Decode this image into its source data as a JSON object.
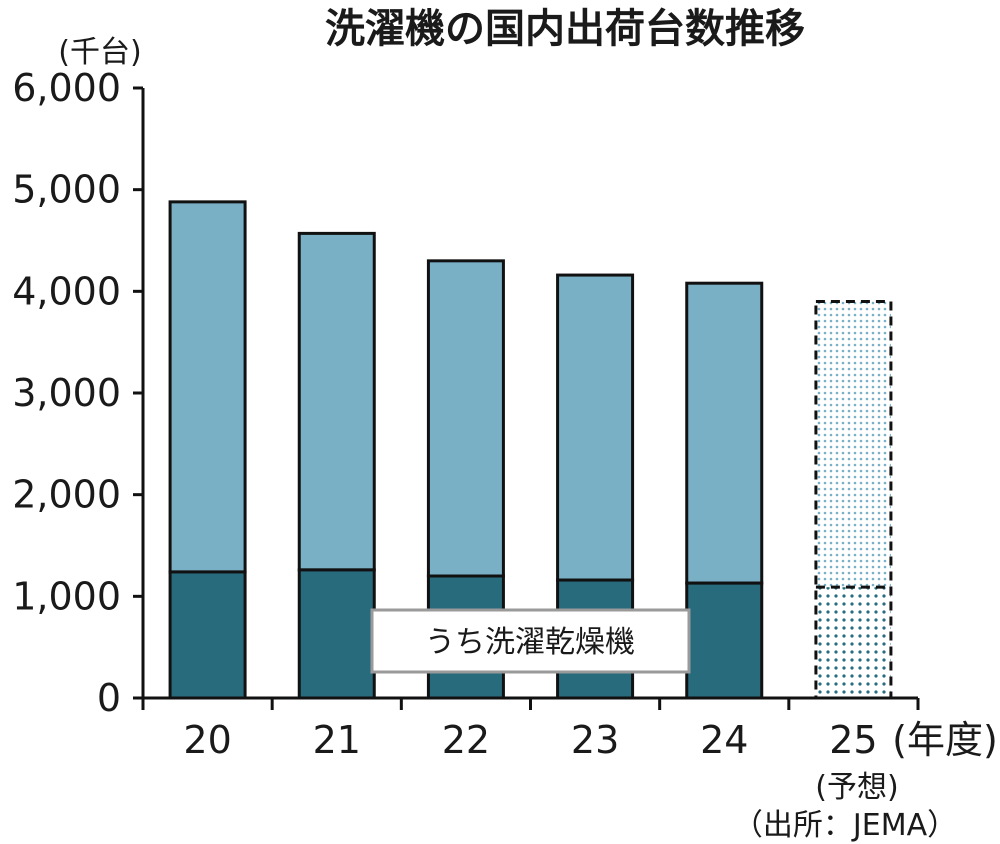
{
  "chart_data": {
    "type": "bar",
    "title": "洗濯機の国内出荷台数推移",
    "y_unit": "(千台)",
    "x_unit": "(年度)",
    "categories": [
      "20",
      "21",
      "22",
      "23",
      "24",
      "25"
    ],
    "forecast_note": "(予想)",
    "forecast_category": "25",
    "source": "（出所：JEMA）",
    "ylim": [
      0,
      6000
    ],
    "yticks": [
      0,
      1000,
      2000,
      3000,
      4000,
      5000,
      6000
    ],
    "ytick_labels": [
      "0",
      "1,000",
      "2,000",
      "3,000",
      "4,000",
      "5,000",
      "6,000"
    ],
    "total": [
      4880,
      4570,
      4300,
      4160,
      4080,
      3900
    ],
    "series": [
      {
        "name": "うち洗濯乾燥機",
        "values": [
          1240,
          1260,
          1200,
          1160,
          1130,
          1090
        ]
      }
    ],
    "legend_label": "うち洗濯乾燥機",
    "colors": {
      "total": "#7ab0c6",
      "dryer": "#276b7d",
      "outline": "#111111",
      "forecast_dot_total": "#7ab0c6",
      "forecast_dot_dryer": "#276b7d"
    },
    "grid": false
  }
}
